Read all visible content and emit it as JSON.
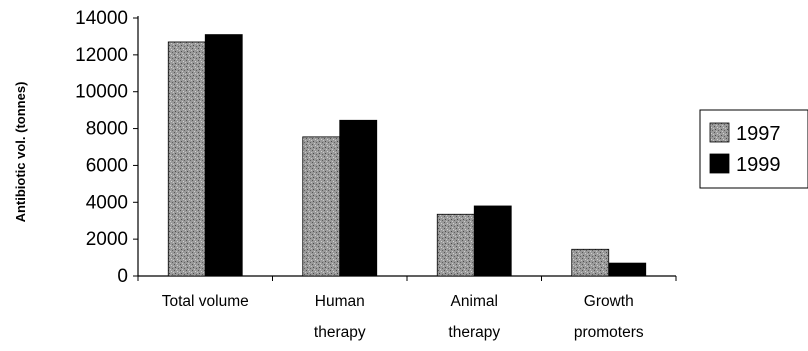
{
  "chart_data": {
    "type": "bar",
    "title": "",
    "xlabel": "",
    "ylabel": "Antibiotic vol. (tonnes)",
    "categories": [
      [
        "Total volume"
      ],
      [
        "Human",
        "therapy"
      ],
      [
        "Animal",
        "therapy"
      ],
      [
        "Growth",
        "promoters"
      ]
    ],
    "series": [
      {
        "name": "1997",
        "values": [
          12700,
          7550,
          3350,
          1450
        ],
        "color": "#8a8a8a",
        "pattern": "speckled-gray"
      },
      {
        "name": "1999",
        "values": [
          13100,
          8450,
          3800,
          700
        ],
        "color": "#000000"
      }
    ],
    "ylim": [
      0,
      14000
    ],
    "yticks": [
      0,
      2000,
      4000,
      6000,
      8000,
      10000,
      12000,
      14000
    ],
    "grid": false,
    "legend": {
      "placement": "right",
      "boxed": true
    }
  }
}
